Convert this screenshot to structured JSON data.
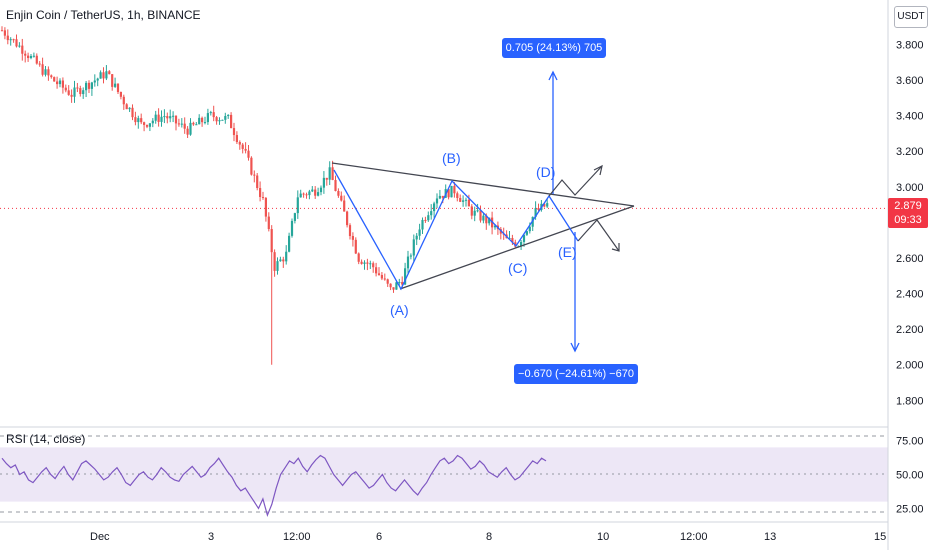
{
  "header": {
    "title": "Enjin Coin / TetherUS, 1h, BINANCE",
    "currency": "USDT"
  },
  "colors": {
    "up": "#26a69a",
    "down": "#ef5350",
    "drawing": "#2962ff",
    "trendline": "#434651",
    "rsi_line": "#7e57c2",
    "rsi_band": "#ede7f6",
    "price_line": "#f23645"
  },
  "price_tag": {
    "price": "2.879",
    "countdown": "09:33"
  },
  "measurements": {
    "up": "0.705 (24.13%) 705",
    "down": "−0.670 (−24.61%) −670"
  },
  "wave_labels": [
    "(A)",
    "(B)",
    "(C)",
    "(D)",
    "(E)"
  ],
  "rsi": {
    "label": "RSI (14, close)"
  },
  "chart_data": [
    {
      "type": "candlestick",
      "title": "Enjin Coin / TetherUS, 1h, BINANCE",
      "ylim": [
        1.65,
        4.05
      ],
      "y_ticks": [
        "3.800",
        "3.600",
        "3.400",
        "3.200",
        "3.000",
        "2.600",
        "2.400",
        "2.200",
        "2.000",
        "1.800"
      ],
      "y_tick_values": [
        3.8,
        3.6,
        3.4,
        3.2,
        3.0,
        2.6,
        2.4,
        2.2,
        2.0,
        1.8
      ],
      "x_ticks": [
        "Dec",
        "3",
        "12:00",
        "6",
        "8",
        "10",
        "12:00",
        "13",
        "15"
      ],
      "last_price": 2.879,
      "trend": [
        [
          0,
          3.88
        ],
        [
          8,
          3.76
        ],
        [
          16,
          3.62
        ],
        [
          24,
          3.52
        ],
        [
          30,
          3.58
        ],
        [
          36,
          3.64
        ],
        [
          42,
          3.48
        ],
        [
          48,
          3.35
        ],
        [
          56,
          3.4
        ],
        [
          64,
          3.32
        ],
        [
          72,
          3.4
        ],
        [
          78,
          3.38
        ],
        [
          84,
          3.18
        ],
        [
          90,
          2.92
        ],
        [
          94,
          2.55
        ],
        [
          98,
          2.62
        ],
        [
          102,
          2.95
        ],
        [
          108,
          2.98
        ],
        [
          113,
          3.08
        ],
        [
          118,
          2.85
        ],
        [
          123,
          2.6
        ],
        [
          128,
          2.55
        ],
        [
          134,
          2.42
        ],
        [
          138,
          2.48
        ],
        [
          144,
          2.78
        ],
        [
          150,
          2.95
        ],
        [
          156,
          2.98
        ],
        [
          162,
          2.86
        ],
        [
          168,
          2.8
        ],
        [
          174,
          2.7
        ],
        [
          178,
          2.68
        ],
        [
          184,
          2.86
        ],
        [
          188,
          2.9
        ]
      ],
      "wick_low": {
        "index": 93,
        "value": 2.0
      },
      "waves": [
        {
          "label": "(A)",
          "value": 2.42
        },
        {
          "label": "(B)",
          "value": 3.0
        },
        {
          "label": "(C)",
          "value": 2.63
        },
        {
          "label": "(D)",
          "value": 2.93
        },
        {
          "label": "(E)",
          "value": 2.73
        }
      ]
    },
    {
      "type": "line",
      "title": "RSI (14, close)",
      "ylim": [
        15,
        85
      ],
      "y_ticks": [
        "75.00",
        "50.00",
        "25.00"
      ],
      "y_tick_values": [
        75,
        50,
        25
      ],
      "band": [
        30,
        70
      ],
      "series": [
        {
          "values": [
            62,
            58,
            55,
            57,
            50,
            52,
            46,
            44,
            48,
            52,
            55,
            50,
            47,
            52,
            56,
            50,
            46,
            52,
            58,
            60,
            57,
            54,
            50,
            46,
            48,
            52,
            55,
            50,
            44,
            42,
            46,
            50,
            52,
            48,
            46,
            50,
            55,
            52,
            48,
            46,
            45,
            50,
            53,
            56,
            52,
            48,
            50,
            55,
            58,
            62,
            57,
            52,
            48,
            42,
            38,
            40,
            35,
            30,
            25,
            32,
            20,
            28,
            40,
            50,
            55,
            60,
            58,
            62,
            56,
            52,
            57,
            61,
            64,
            62,
            56,
            50,
            46,
            42,
            46,
            50,
            52,
            48,
            44,
            40,
            42,
            46,
            50,
            44,
            40,
            38,
            42,
            46,
            42,
            38,
            35,
            40,
            44,
            50,
            55,
            60,
            62,
            58,
            60,
            64,
            62,
            58,
            54,
            56,
            60,
            57,
            52,
            50,
            48,
            52,
            55,
            50,
            46,
            48,
            52,
            56,
            60,
            58,
            62,
            60
          ]
        }
      ]
    }
  ]
}
